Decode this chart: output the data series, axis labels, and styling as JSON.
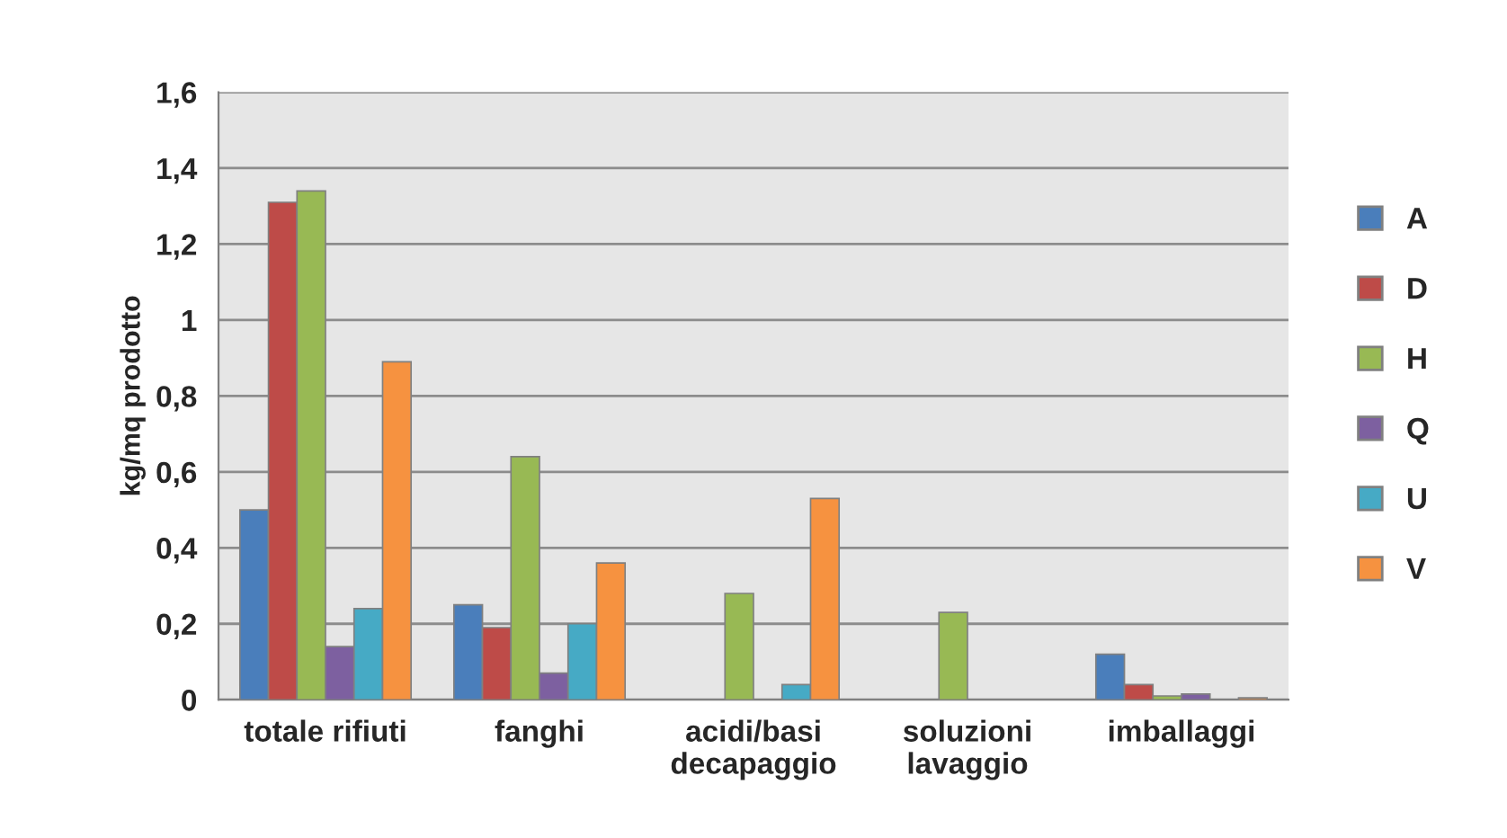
{
  "chart_data": {
    "type": "bar",
    "ylabel": "kg/mq prodotto",
    "categories": [
      "totale rifiuti",
      "fanghi",
      "acidi/basi\ndecapaggio",
      "soluzioni\nlavaggio",
      "imballaggi"
    ],
    "series": [
      {
        "name": "A",
        "color": "#4a7ebb",
        "values": [
          0.5,
          0.25,
          null,
          null,
          0.12
        ]
      },
      {
        "name": "D",
        "color": "#be4b48",
        "values": [
          1.31,
          0.19,
          null,
          null,
          0.04
        ]
      },
      {
        "name": "H",
        "color": "#98b954",
        "values": [
          1.34,
          0.64,
          0.28,
          0.23,
          0.01
        ]
      },
      {
        "name": "Q",
        "color": "#7d60a0",
        "values": [
          0.14,
          0.07,
          null,
          null,
          0.015
        ]
      },
      {
        "name": "U",
        "color": "#46aac5",
        "values": [
          0.24,
          0.2,
          0.04,
          null,
          null
        ]
      },
      {
        "name": "V",
        "color": "#f69240",
        "values": [
          0.89,
          0.36,
          0.53,
          null,
          0.005
        ]
      }
    ],
    "ylim": [
      0,
      1.6
    ],
    "yticks": [
      0,
      {
        "value": 0.2,
        "label": "0,2"
      },
      {
        "value": 0.4,
        "label": "0,4"
      },
      {
        "value": 0.6,
        "label": "0,6"
      },
      {
        "value": 0.8,
        "label": "0,8"
      },
      1,
      {
        "value": 1.2,
        "label": "1,2"
      },
      {
        "value": 1.4,
        "label": "1,4"
      },
      {
        "value": 1.6,
        "label": "1,6"
      }
    ],
    "grid": "y",
    "legend": "right"
  }
}
